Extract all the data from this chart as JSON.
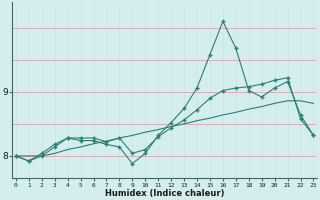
{
  "xlabel": "Humidex (Indice chaleur)",
  "bg_color": "#d4eeee",
  "line_color": "#2e7d72",
  "grid_h_color": "#e8a0a0",
  "grid_v_color": "#c8e8e8",
  "x_values": [
    0,
    1,
    2,
    3,
    4,
    5,
    6,
    7,
    8,
    9,
    10,
    11,
    12,
    13,
    14,
    15,
    16,
    17,
    18,
    19,
    20,
    21,
    22,
    23
  ],
  "line1_y": [
    8.0,
    7.92,
    8.04,
    8.18,
    8.28,
    8.24,
    8.24,
    8.18,
    8.14,
    7.88,
    8.04,
    8.32,
    8.52,
    8.74,
    9.06,
    9.58,
    10.1,
    9.68,
    9.02,
    8.92,
    9.06,
    9.16,
    8.64,
    8.32
  ],
  "line2_y": [
    8.0,
    7.92,
    8.0,
    8.14,
    8.28,
    8.28,
    8.28,
    8.22,
    8.28,
    8.04,
    8.1,
    8.3,
    8.44,
    8.56,
    8.72,
    8.9,
    9.02,
    9.06,
    9.08,
    9.12,
    9.18,
    9.22,
    8.58,
    8.32
  ],
  "line3_y": [
    8.0,
    8.0,
    8.0,
    8.04,
    8.1,
    8.14,
    8.19,
    8.23,
    8.28,
    8.32,
    8.37,
    8.41,
    8.46,
    8.5,
    8.55,
    8.59,
    8.64,
    8.68,
    8.73,
    8.77,
    8.82,
    8.86,
    8.86,
    8.82
  ],
  "ylim": [
    7.65,
    10.4
  ],
  "yticks": [
    8,
    9
  ],
  "xticks": [
    0,
    1,
    2,
    3,
    4,
    5,
    6,
    7,
    8,
    9,
    10,
    11,
    12,
    13,
    14,
    15,
    16,
    17,
    18,
    19,
    20,
    21,
    22,
    23
  ],
  "marker": "+",
  "markersize": 3,
  "linewidth": 0.8
}
